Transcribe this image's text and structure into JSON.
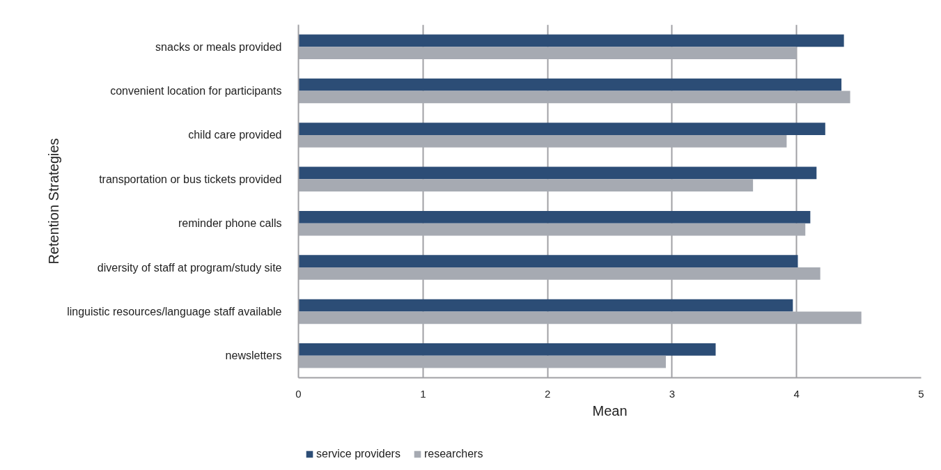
{
  "chart_data": {
    "type": "bar",
    "orientation": "horizontal",
    "xlabel": "Mean",
    "ylabel": "Retention Strategies",
    "categories": [
      "snacks or meals provided",
      "convenient location for participants",
      "child care provided",
      "transportation or bus tickets provided",
      "reminder phone calls",
      "diversity of staff at program/study site",
      "linguistic resources/language staff available",
      "newsletters"
    ],
    "series": [
      {
        "name": "service providers",
        "color": "#2c4d76",
        "values": [
          4.38,
          4.36,
          4.23,
          4.16,
          4.11,
          4.01,
          3.97,
          3.35
        ]
      },
      {
        "name": "researchers",
        "color": "#a6aab2",
        "values": [
          4.0,
          4.43,
          3.92,
          3.65,
          4.07,
          4.19,
          4.52,
          2.95
        ]
      }
    ],
    "xlim": [
      0,
      5
    ],
    "xticks": [
      0,
      1,
      2,
      3,
      4,
      5
    ],
    "grid": "x",
    "legend": "bottom left"
  }
}
